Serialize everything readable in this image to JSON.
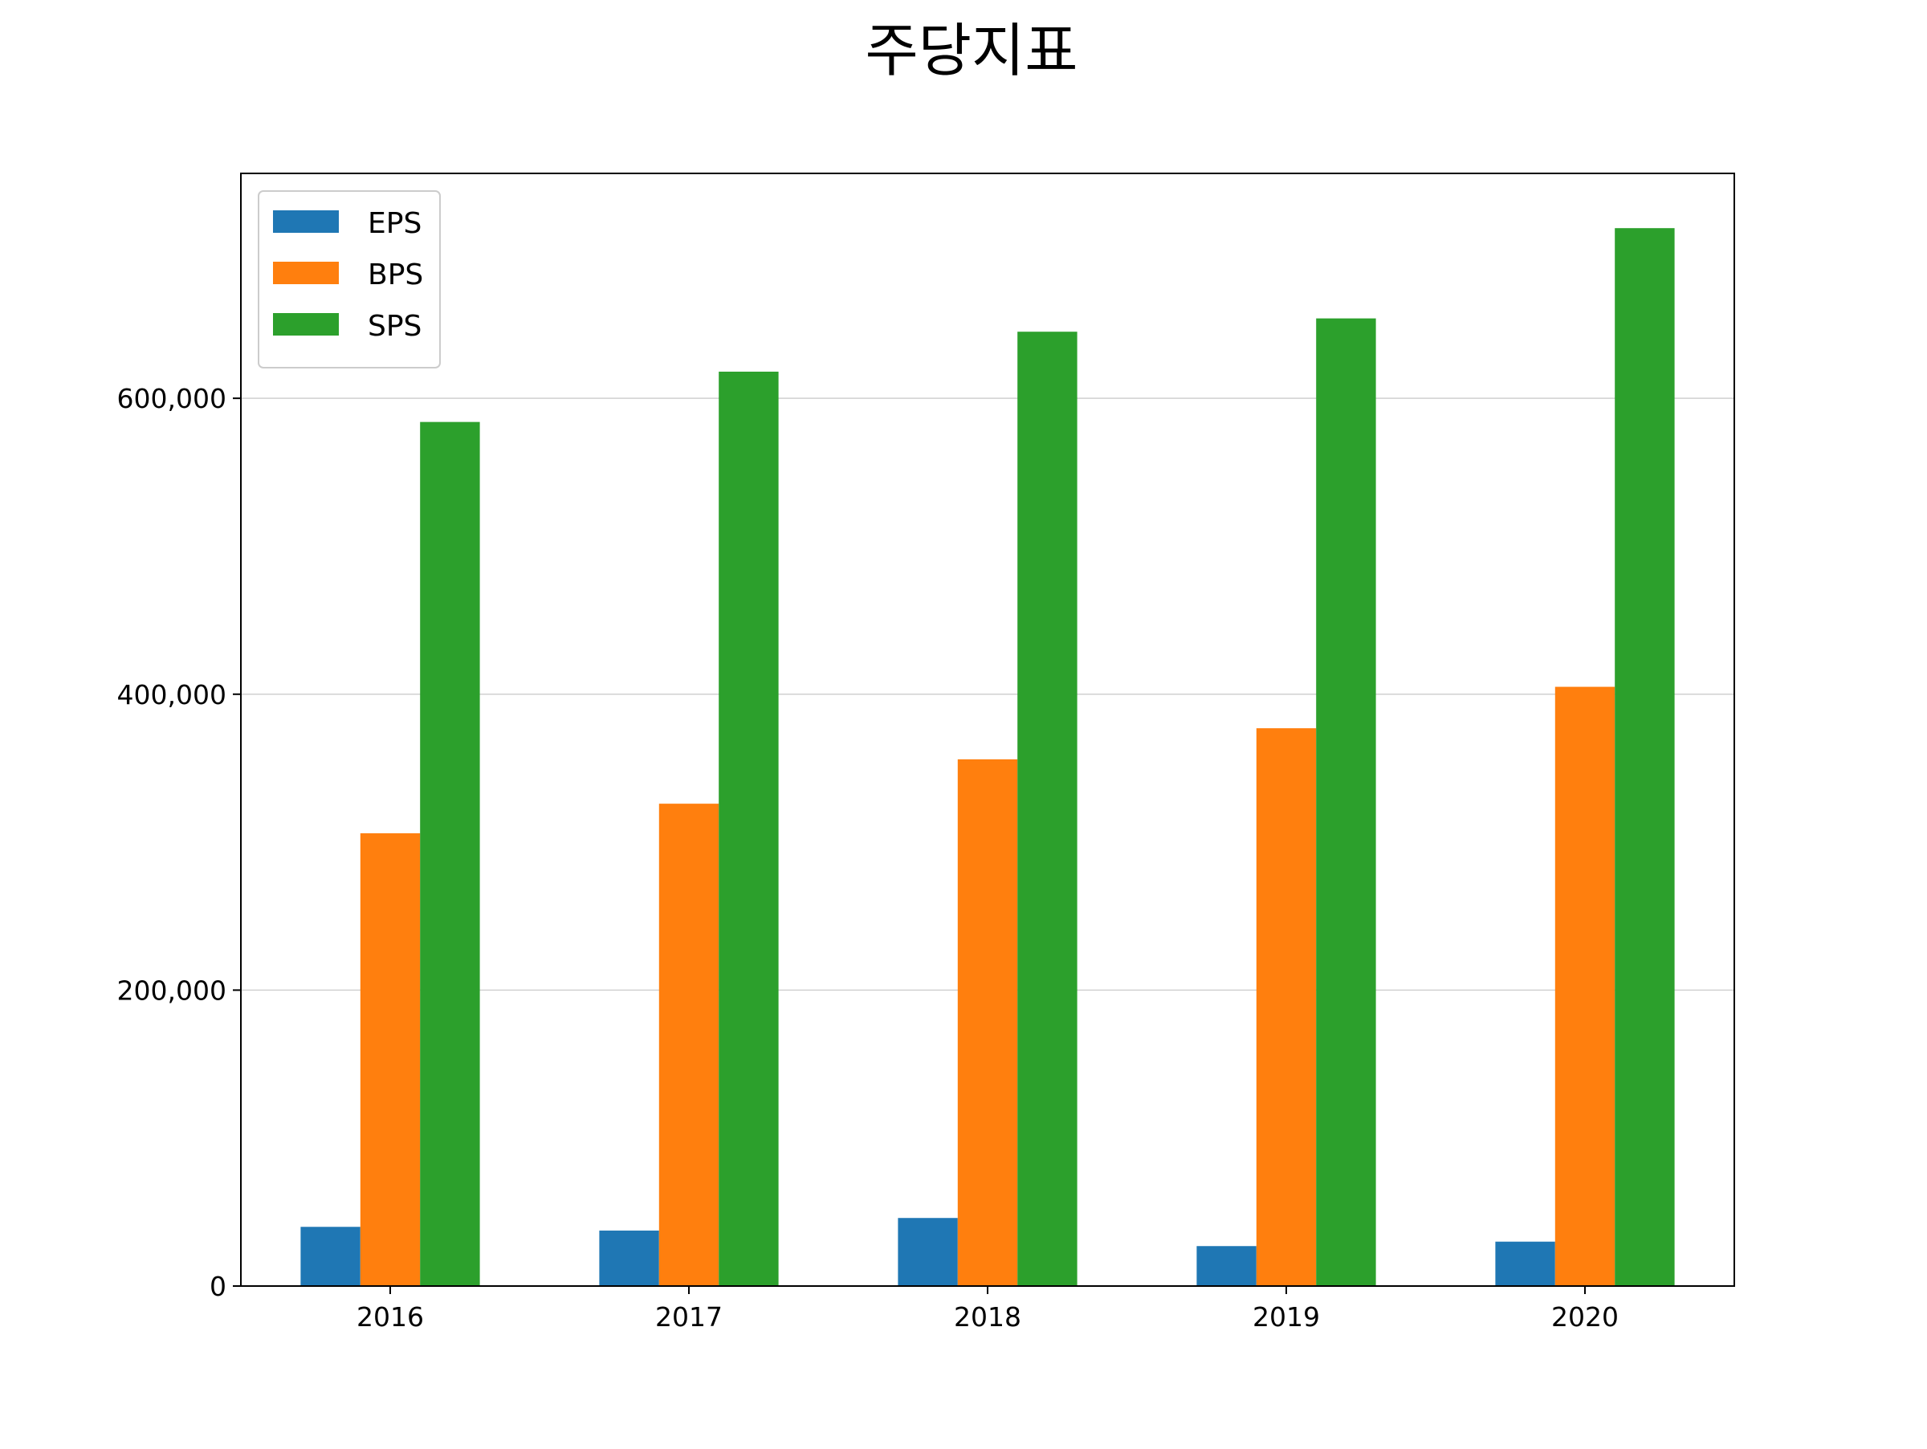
{
  "chart_data": {
    "type": "bar",
    "title": "주당지표",
    "xlabel": "",
    "ylabel": "",
    "categories": [
      "2016",
      "2017",
      "2018",
      "2019",
      "2020"
    ],
    "series": [
      {
        "name": "EPS",
        "color": "#1f77b4",
        "values": [
          40000,
          37500,
          46000,
          27000,
          30000
        ]
      },
      {
        "name": "BPS",
        "color": "#ff7f0e",
        "values": [
          306000,
          326000,
          356000,
          377000,
          405000
        ]
      },
      {
        "name": "SPS",
        "color": "#2ca02c",
        "values": [
          584000,
          618000,
          645000,
          654000,
          715000
        ]
      }
    ],
    "ylim": [
      0,
      752000
    ],
    "yticks": [
      0,
      200000,
      400000,
      600000
    ],
    "ytick_labels": [
      "0",
      "200,000",
      "400,000",
      "600,000"
    ],
    "grid": "horizontal",
    "legend_position": "top-left"
  }
}
